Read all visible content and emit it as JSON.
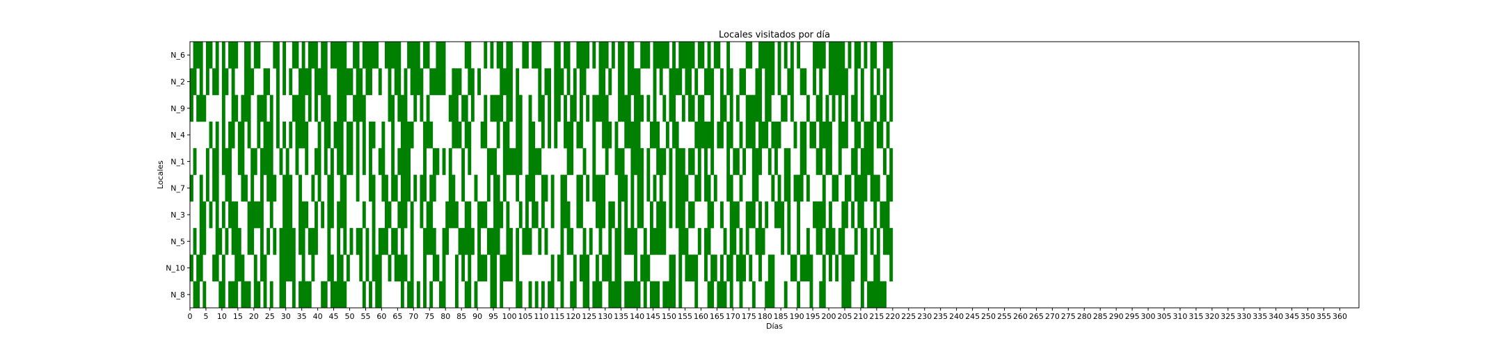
{
  "chart_data": {
    "type": "heatmap",
    "title": "Locales visitados por día",
    "xlabel": "Días",
    "ylabel": "Locales",
    "color": "#008000",
    "background": "#ffffff",
    "x_range": [
      0,
      366
    ],
    "x_ticks": [
      0,
      5,
      10,
      15,
      20,
      25,
      30,
      35,
      40,
      45,
      50,
      55,
      60,
      65,
      70,
      75,
      80,
      85,
      90,
      95,
      100,
      105,
      110,
      115,
      120,
      125,
      130,
      135,
      140,
      145,
      150,
      155,
      160,
      165,
      170,
      175,
      180,
      185,
      190,
      195,
      200,
      205,
      210,
      215,
      220,
      225,
      230,
      235,
      240,
      245,
      250,
      255,
      260,
      265,
      270,
      275,
      280,
      285,
      290,
      295,
      300,
      305,
      310,
      315,
      320,
      325,
      330,
      335,
      340,
      345,
      350,
      355,
      360
    ],
    "rows": [
      {
        "name": "N_6",
        "visits": "0111011010101110011011000011010011010111011011111001101111100111110011110110011100000011000010101101100011011100001101100111101011101011011001110111110101111101101011001000001100111110101010100001111011111010110101100111"
      },
      {
        "name": "N_2",
        "visits": "1101010110110100011100011001010100111101111000111110110110010010110101111001111100111001101000000111101000000101101110101011000011010011011110000101001111011010011100101100110001101110100110011001010011111100101001010101"
      },
      {
        "name": "N_9",
        "visits": "1011100000100110111001110101000011110101011100111001111000000011011100101010000001110110100010111101101100100110101101011010101111100011110111010100101100101101100100110101001111101100011010000100110101010101101001101101"
      },
      {
        "name": "N_4",
        "visits": "0000001010101101101001011101010101111000101101110110101011001001001111000111000000111011000110001011001100110010101001110110001001110100111110001110010110000011111101101100101110111011100001011011011110011100110111011010"
      },
      {
        "name": "N_1",
        "visits": "0100010110111001100110111100101001001001101010110110101010011001011110000100110101000101000001110011111100111100000000110001001000100111001111010011101011101101010100001011010011100101001100011000110110010001101111000101"
      },
      {
        "name": "N_7",
        "visits": "1001010110011000110100101110011100100010100110011000100011001101101110101101100001100100010001011010001001110011010011000110101111000011101011010101001011110011011010001100100011000010101101110100001001100110111101110011"
      },
      {
        "name": "N_3",
        "visits": "0001101010101110001111100100011100111001010110111000001001000110011101001011000011110011001110011101000101011010010011100110000111011010101011001011101011101100001100100111001110101001110100100001111010001101011000101110"
      },
      {
        "name": "N_5",
        "visits": "0101100011010111001100101010111110110111000100101010110101011101101001000111100110001111101001111001101011100101000010110001010010010110111100101111100001110001011000010110101001110000010100100100110111011000101101010111"
      },
      {
        "name": "N_10",
        "visits": "1011000110100011100010110000111110010010000110110100010101110010111101000100110100010101001110110111101000000000010110001011100101110110000101110000001101011110010110101101110100100110000011011110001010101111001100110001"
      },
      {
        "name": "N_8",
        "visits": "0110100001101110111011010100110010111100011011111000001010110000001011010101001100010011010000110100001100101010110010011001101110011110111110101110111101000010001101110100100010001110001000100010011000001110001011111100"
      }
    ]
  }
}
